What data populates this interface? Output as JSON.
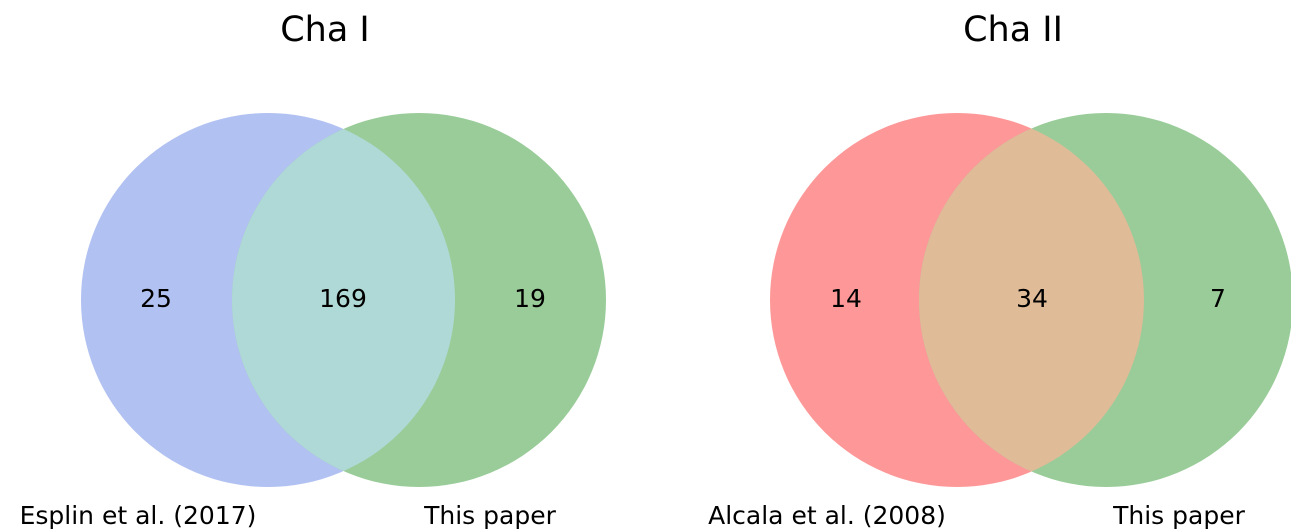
{
  "venn_diagrams": [
    {
      "title": "Cha I",
      "left_set": {
        "label": "Esplin et al. (2017)",
        "color": "#b1c1f2"
      },
      "right_set": {
        "label": "This paper",
        "color": "#99cc99"
      },
      "overlap_color": "#afd9d6",
      "counts": {
        "left_only": "25",
        "both": "169",
        "right_only": "19"
      }
    },
    {
      "title": "Cha II",
      "left_set": {
        "label": "Alcala et al. (2008)",
        "color": "#fe9898"
      },
      "right_set": {
        "label": "This paper",
        "color": "#99cc99"
      },
      "overlap_color": "#dfbb98",
      "counts": {
        "left_only": "14",
        "both": "34",
        "right_only": "7"
      }
    }
  ]
}
